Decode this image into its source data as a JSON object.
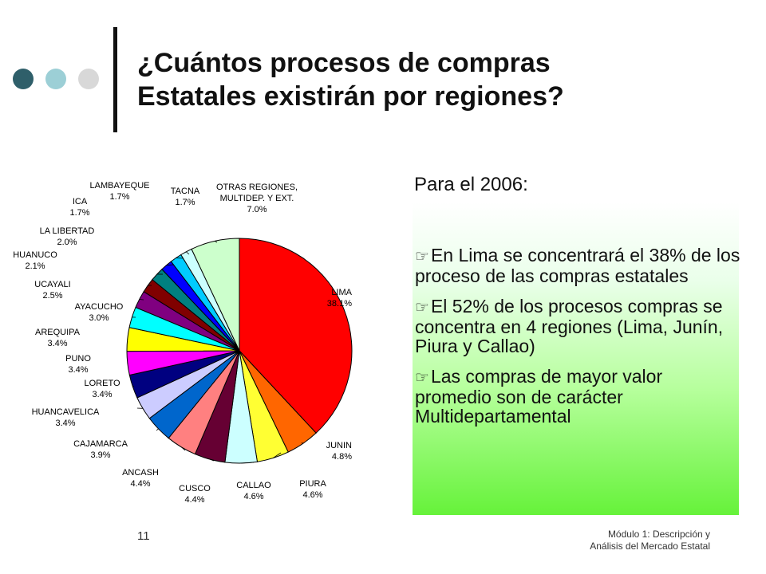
{
  "title": {
    "line1": "¿Cuántos procesos de compras",
    "line2": "Estatales existirán por regiones?"
  },
  "colors": {
    "accent_dark": "#2f5f6a",
    "accent_light": "#9ccfd6",
    "accent_grey": "#d8d8d8",
    "highlight_green": "#66f23a"
  },
  "content": {
    "intro": "Para el 2006:",
    "bullets": [
      "En Lima se concentrará el 38% de los proceso de las compras estatales",
      "El 52% de los procesos compras se concentra en 4 regiones (Lima, Junín, Piura y Callao)",
      "Las compras de mayor valor promedio son de carácter Multidepartamental"
    ]
  },
  "footer": {
    "slide_number": "11",
    "line1": "Módulo 1: Descripción y",
    "line2": "Análisis del Mercado Estatal"
  },
  "chart_data": {
    "type": "pie",
    "title": "",
    "slices": [
      {
        "label": "LIMA",
        "value": 38.1,
        "value_label": "38.1%",
        "color": "#ff0000"
      },
      {
        "label": "JUNIN",
        "value": 4.8,
        "value_label": "4.8%",
        "color": "#ff6600"
      },
      {
        "label": "PIURA",
        "value": 4.6,
        "value_label": "4.6%",
        "color": "#ffff33"
      },
      {
        "label": "CALLAO",
        "value": 4.6,
        "value_label": "4.6%",
        "color": "#ccffff"
      },
      {
        "label": "CUSCO",
        "value": 4.4,
        "value_label": "4.4%",
        "color": "#660033"
      },
      {
        "label": "ANCASH",
        "value": 4.4,
        "value_label": "4.4%",
        "color": "#ff8080"
      },
      {
        "label": "CAJAMARCA",
        "value": 3.9,
        "value_label": "3.9%",
        "color": "#0066cc"
      },
      {
        "label": "HUANCAVELICA",
        "value": 3.4,
        "value_label": "3.4%",
        "color": "#ccccff"
      },
      {
        "label": "LORETO",
        "value": 3.4,
        "value_label": "3.4%",
        "color": "#000080"
      },
      {
        "label": "PUNO",
        "value": 3.4,
        "value_label": "3.4%",
        "color": "#ff00ff"
      },
      {
        "label": "AREQUIPA",
        "value": 3.4,
        "value_label": "3.4%",
        "color": "#ffff00"
      },
      {
        "label": "AYACUCHO",
        "value": 3.0,
        "value_label": "3.0%",
        "color": "#00ffff"
      },
      {
        "label": "UCAYALI",
        "value": 2.5,
        "value_label": "2.5%",
        "color": "#800080"
      },
      {
        "label": "HUANUCO",
        "value": 2.1,
        "value_label": "2.1%",
        "color": "#800000"
      },
      {
        "label": "LA LIBERTAD",
        "value": 2.0,
        "value_label": "2.0%",
        "color": "#008080"
      },
      {
        "label": "ICA",
        "value": 1.7,
        "value_label": "1.7%",
        "color": "#0000ff"
      },
      {
        "label": "LAMBAYEQUE",
        "value": 1.7,
        "value_label": "1.7%",
        "color": "#00ccff"
      },
      {
        "label": "TACNA",
        "value": 1.7,
        "value_label": "1.7%",
        "color": "#ccffff"
      },
      {
        "label": "OTRAS REGIONES, MULTIDEP. Y EXT.",
        "label_lines": [
          "OTRAS REGIONES,",
          "MULTIDEP. Y EXT."
        ],
        "value": 7.0,
        "value_label": "7.0%",
        "color": "#ccffcc"
      }
    ]
  }
}
